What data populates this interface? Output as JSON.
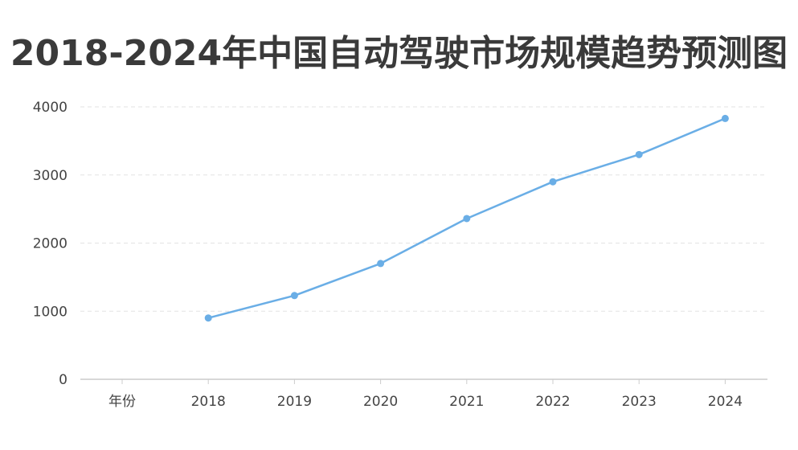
{
  "chart_data": {
    "type": "line",
    "title": "2018-2024年中国自动驾驶市场规模趋势预测图",
    "x_axis_first_label": "年份",
    "categories": [
      "2018",
      "2019",
      "2020",
      "2021",
      "2022",
      "2023",
      "2024"
    ],
    "series": [
      {
        "values": [
          900,
          1230,
          1700,
          2360,
          2900,
          3300,
          3830
        ]
      }
    ],
    "y_ticks": [
      "0",
      "1000",
      "2000",
      "3000",
      "4000"
    ],
    "ylim": [
      0,
      4000
    ],
    "grid": "horizontal-dashed",
    "colors": {
      "line": "#6aaee6",
      "grid": "#e3e3e3",
      "axis": "#cccccc"
    }
  }
}
